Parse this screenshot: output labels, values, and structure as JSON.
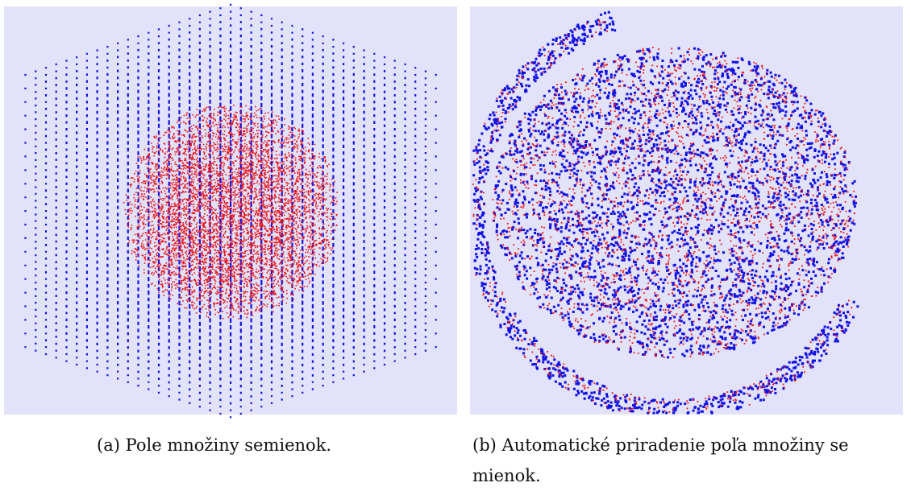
{
  "figures": [
    {
      "label": "(a)",
      "caption_lines": [
        "Pole množiny semienok."
      ]
    },
    {
      "label": "(b)",
      "caption_lines": [
        "Automatické priradenie poľa množiny se",
        "mienok."
      ]
    }
  ]
}
